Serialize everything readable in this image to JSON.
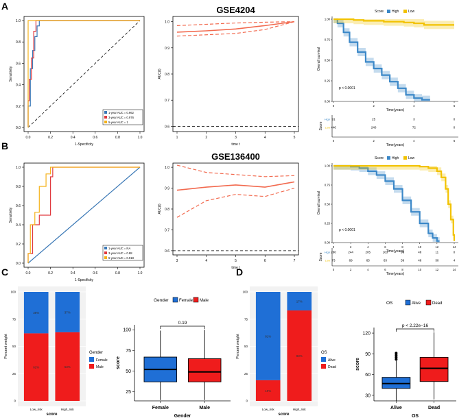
{
  "panel_labels": [
    "A",
    "B",
    "C",
    "D"
  ],
  "colors": {
    "roc_1y": "#3a79b8",
    "roc_3y": "#e0393e",
    "roc_5y": "#f5b21a",
    "auc_line": "#f26a4f",
    "km_high": "#3b88c8",
    "km_low": "#f2c200",
    "female": "#1f6fd6",
    "male": "#ef1c1c",
    "alive": "#1f6fd6",
    "dead": "#ef1c1c"
  },
  "chart_data": [
    {
      "id": "A_roc",
      "type": "line",
      "xlabel": "1-Specificity",
      "ylabel": "Sensitivity",
      "xlim": [
        0,
        1
      ],
      "ylim": [
        0,
        1
      ],
      "xticks": [
        "0.0",
        "0.2",
        "0.4",
        "0.6",
        "0.8",
        "1.0"
      ],
      "yticks": [
        "0.0",
        "0.2",
        "0.4",
        "0.6",
        "0.8",
        "1.0"
      ],
      "series": [
        {
          "name": "1-year AUC = 0.962",
          "x": [
            0,
            0,
            0.02,
            0.02,
            0.04,
            0.04,
            0.06,
            0.06,
            0.08,
            0.08,
            0.1,
            0.1,
            1
          ],
          "y": [
            0,
            0.2,
            0.2,
            0.55,
            0.55,
            0.72,
            0.72,
            0.85,
            0.85,
            0.95,
            0.95,
            1,
            1
          ]
        },
        {
          "name": "3-year AUC = 0.976",
          "x": [
            0,
            0,
            0.01,
            0.01,
            0.03,
            0.03,
            0.05,
            0.05,
            0.07,
            0.07,
            1
          ],
          "y": [
            0,
            0.25,
            0.25,
            0.45,
            0.45,
            0.65,
            0.65,
            0.9,
            0.9,
            1,
            1
          ]
        },
        {
          "name": "5-year AUC = 1",
          "x": [
            0,
            0,
            1
          ],
          "y": [
            0,
            1,
            1
          ]
        }
      ],
      "diagonal": true
    },
    {
      "id": "A_auc",
      "type": "line",
      "title": "GSE4204",
      "xlabel": "time t",
      "ylabel": "AUC(t)",
      "xlim": [
        1,
        5
      ],
      "ylim": [
        0.58,
        1.02
      ],
      "xticks": [
        "1",
        "2",
        "3",
        "4",
        "5"
      ],
      "yticks": [
        "0.6",
        "0.7",
        "0.8",
        "0.9",
        "1.0"
      ],
      "series": [
        {
          "name": "AUC",
          "x": [
            1,
            2,
            3,
            4,
            5
          ],
          "y": [
            0.96,
            0.965,
            0.972,
            0.985,
            1.0
          ]
        },
        {
          "name": "upper",
          "x": [
            1,
            2,
            3,
            4,
            5
          ],
          "y": [
            0.985,
            0.99,
            0.995,
            0.998,
            1.0
          ]
        },
        {
          "name": "lower",
          "x": [
            1,
            2,
            3,
            4,
            5
          ],
          "y": [
            0.945,
            0.95,
            0.955,
            0.97,
            1.0
          ]
        }
      ],
      "reference": 0.6
    },
    {
      "id": "A_km",
      "type": "line",
      "legend_title": "Score",
      "legend": [
        "High",
        "Low"
      ],
      "xlabel": "Time(years)",
      "ylabel": "Overall survival",
      "xlim": [
        0,
        6
      ],
      "ylim": [
        0,
        1
      ],
      "xticks": [
        "0",
        "2",
        "4",
        "6"
      ],
      "yticks": [
        "0.00",
        "0.25",
        "0.50",
        "0.75",
        "1.00"
      ],
      "pvalue": "p < 0.0001",
      "series": [
        {
          "name": "High",
          "x": [
            0,
            0.2,
            0.5,
            0.8,
            1.2,
            1.6,
            2.0,
            2.4,
            2.8,
            3.2,
            3.6,
            4.0,
            4.4,
            4.8
          ],
          "y": [
            1,
            0.95,
            0.84,
            0.72,
            0.6,
            0.48,
            0.4,
            0.32,
            0.24,
            0.16,
            0.08,
            0.04,
            0.02,
            0.02
          ]
        },
        {
          "name": "Low",
          "x": [
            0,
            0.5,
            1,
            1.5,
            2,
            2.5,
            3,
            3.5,
            4,
            4.5,
            5,
            5.5,
            6
          ],
          "y": [
            1,
            1,
            0.99,
            0.98,
            0.98,
            0.97,
            0.97,
            0.96,
            0.95,
            0.93,
            0.93,
            0.93,
            0.93
          ]
        }
      ],
      "risk_table": {
        "xlabel": "Time(years)",
        "ylabel": "Score",
        "times": [
          "0",
          "2",
          "4",
          "6"
        ],
        "rows": [
          {
            "group": "High",
            "values": [
              "91",
              "25",
              "3",
              "0"
            ]
          },
          {
            "group": "Low",
            "values": [
              "446",
              "240",
              "72",
              "0"
            ]
          }
        ]
      }
    },
    {
      "id": "B_roc",
      "type": "line",
      "xlabel": "1-Specificity",
      "ylabel": "Sensitivity",
      "xlim": [
        0,
        1
      ],
      "ylim": [
        0,
        1
      ],
      "xticks": [
        "0.0",
        "0.2",
        "0.4",
        "0.6",
        "0.8",
        "1.0"
      ],
      "yticks": [
        "0.0",
        "0.2",
        "0.4",
        "0.6",
        "0.8",
        "1.0"
      ],
      "series": [
        {
          "name": "1-year AUC = NA",
          "x": [
            0,
            1
          ],
          "y": [
            0,
            1
          ]
        },
        {
          "name": "3-year AUC = 0.88",
          "x": [
            0,
            0,
            0.04,
            0.04,
            0.1,
            0.1,
            0.2,
            0.2,
            0.22,
            0.22,
            1
          ],
          "y": [
            0,
            0.1,
            0.1,
            0.4,
            0.4,
            0.5,
            0.5,
            0.9,
            0.9,
            1,
            1
          ]
        },
        {
          "name": "5-year AUC = 0.918",
          "x": [
            0,
            0,
            0.02,
            0.02,
            0.06,
            0.06,
            0.1,
            0.1,
            0.16,
            0.16,
            0.2,
            0.2,
            1
          ],
          "y": [
            0,
            0.1,
            0.1,
            0.4,
            0.4,
            0.53,
            0.53,
            0.8,
            0.8,
            0.93,
            0.93,
            1,
            1
          ]
        }
      ],
      "diagonal": true
    },
    {
      "id": "B_auc",
      "type": "line",
      "title": "GSE136400",
      "xlabel": "time t",
      "ylabel": "AUC(t)",
      "xlim": [
        3,
        7
      ],
      "ylim": [
        0.58,
        1.02
      ],
      "xticks": [
        "3",
        "4",
        "5",
        "6",
        "7"
      ],
      "yticks": [
        "0.6",
        "0.7",
        "0.8",
        "0.9",
        "1.0"
      ],
      "series": [
        {
          "name": "AUC",
          "x": [
            3,
            4,
            5,
            6,
            7
          ],
          "y": [
            0.89,
            0.905,
            0.915,
            0.905,
            0.93
          ]
        },
        {
          "name": "upper",
          "x": [
            3,
            4,
            5,
            6,
            7
          ],
          "y": [
            1.01,
            0.975,
            0.965,
            0.955,
            0.96
          ]
        },
        {
          "name": "lower",
          "x": [
            3,
            4,
            5,
            6,
            7
          ],
          "y": [
            0.76,
            0.84,
            0.87,
            0.86,
            0.9
          ]
        }
      ],
      "reference": 0.6
    },
    {
      "id": "B_km",
      "type": "line",
      "legend_title": "Score",
      "legend": [
        "High",
        "Low"
      ],
      "xlabel": "Time(years)",
      "ylabel": "Overall survival",
      "xlim": [
        0,
        14
      ],
      "ylim": [
        0,
        1
      ],
      "xticks": [
        "0",
        "2",
        "4",
        "6",
        "8",
        "10",
        "12",
        "14"
      ],
      "yticks": [
        "0.00",
        "0.25",
        "0.50",
        "0.75",
        "1.00"
      ],
      "pvalue": "p < 0.0001",
      "series": [
        {
          "name": "High",
          "x": [
            0,
            1,
            2,
            3,
            4,
            5,
            6,
            7,
            8,
            9,
            10,
            11,
            11.5,
            12,
            12.3
          ],
          "y": [
            1,
            1,
            0.99,
            0.97,
            0.93,
            0.88,
            0.8,
            0.7,
            0.55,
            0.4,
            0.25,
            0.12,
            0.06,
            0.02,
            0.02
          ]
        },
        {
          "name": "Low",
          "x": [
            0,
            2,
            4,
            6,
            8,
            10,
            11,
            12,
            12.5,
            13,
            13.3,
            13.6,
            13.9,
            14
          ],
          "y": [
            1,
            1,
            1,
            1,
            1,
            0.99,
            0.97,
            0.93,
            0.85,
            0.7,
            0.5,
            0.3,
            0.1,
            0.02
          ]
        }
      ],
      "risk_table": {
        "xlabel": "Time(years)",
        "ylabel": "Score",
        "times": [
          "0",
          "2",
          "4",
          "6",
          "8",
          "10",
          "12",
          "14"
        ],
        "rows": [
          {
            "group": "High",
            "values": [
              "280",
              "244",
              "205",
              "163",
              "93",
              "48",
              "11",
              "0"
            ]
          },
          {
            "group": "Low",
            "values": [
              "73",
              "69",
              "65",
              "63",
              "59",
              "48",
              "30",
              "4"
            ]
          }
        ]
      }
    },
    {
      "id": "C_bar",
      "type": "bar",
      "xlabel": "score",
      "ylabel": "Percent weight",
      "categories": [
        "Low_risk",
        "High_risk"
      ],
      "yticks": [
        "0",
        "25",
        "50",
        "75",
        "100"
      ],
      "ylim": [
        0,
        100
      ],
      "legend_title": "Gender",
      "series": [
        {
          "name": "Male",
          "values": [
            62,
            63
          ],
          "labels": [
            "62%",
            "63%"
          ]
        },
        {
          "name": "Female",
          "values": [
            38,
            37
          ],
          "labels": [
            "38%",
            "37%"
          ]
        }
      ]
    },
    {
      "id": "C_box",
      "type": "box",
      "xlabel": "Gender",
      "ylabel": "score",
      "legend_title": "Gender",
      "legend": [
        "Female",
        "Male"
      ],
      "categories": [
        "Female",
        "Male"
      ],
      "ylim": [
        14,
        106
      ],
      "yticks": [
        "25",
        "50",
        "75",
        "100"
      ],
      "pvalue": "0.19",
      "boxes": [
        {
          "name": "Female",
          "min": 15,
          "q1": 37,
          "median": 52,
          "q3": 67,
          "max": 99
        },
        {
          "name": "Male",
          "min": 15,
          "q1": 37,
          "median": 49,
          "q3": 65,
          "max": 100
        }
      ]
    },
    {
      "id": "D_bar",
      "type": "bar",
      "xlabel": "score",
      "ylabel": "Percent weight",
      "categories": [
        "Low_risk",
        "High_risk"
      ],
      "yticks": [
        "0",
        "25",
        "50",
        "75",
        "100"
      ],
      "ylim": [
        0,
        100
      ],
      "legend_title": "OS",
      "series": [
        {
          "name": "Dead",
          "values": [
            19,
            83
          ],
          "labels": [
            "19%",
            "83%"
          ]
        },
        {
          "name": "Alive",
          "values": [
            81,
            17
          ],
          "labels": [
            "81%",
            "17%"
          ]
        }
      ]
    },
    {
      "id": "D_box",
      "type": "box",
      "xlabel": "OS",
      "ylabel": "score",
      "legend_title": "OS",
      "legend": [
        "Alive",
        "Dead"
      ],
      "categories": [
        "Alive",
        "Dead"
      ],
      "ylim": [
        22,
        128
      ],
      "yticks": [
        "30",
        "60",
        "90",
        "120"
      ],
      "pvalue": "p < 2.22e−16",
      "boxes": [
        {
          "name": "Alive",
          "min": 22,
          "q1": 40,
          "median": 47,
          "q3": 56,
          "max": 80,
          "outliers": [
            82,
            85,
            88,
            91
          ]
        },
        {
          "name": "Dead",
          "min": 24,
          "q1": 50,
          "median": 69,
          "q3": 85,
          "max": 121
        }
      ]
    }
  ]
}
